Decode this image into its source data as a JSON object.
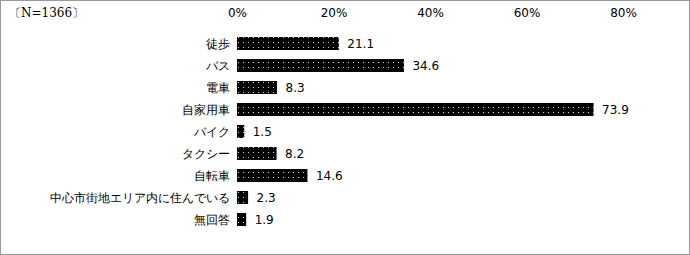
{
  "chart_data": {
    "type": "bar",
    "orientation": "horizontal",
    "title": "〔N=1366〕",
    "categories": [
      "徒歩",
      "バス",
      "電車",
      "自家用車",
      "バイク",
      "タクシー",
      "自転車",
      "中心市街地エリア内に住んでいる",
      "無回答"
    ],
    "values": [
      21.1,
      34.6,
      8.3,
      73.9,
      1.5,
      8.2,
      14.6,
      2.3,
      1.9
    ],
    "color": "#000000",
    "xlim": [
      0,
      80
    ],
    "xticks": [
      {
        "value": 0,
        "label": "0%"
      },
      {
        "value": 20,
        "label": "20%"
      },
      {
        "value": 40,
        "label": "40%"
      },
      {
        "value": 60,
        "label": "60%"
      },
      {
        "value": 80,
        "label": "80%"
      }
    ],
    "grid": false,
    "data_labels": true
  }
}
